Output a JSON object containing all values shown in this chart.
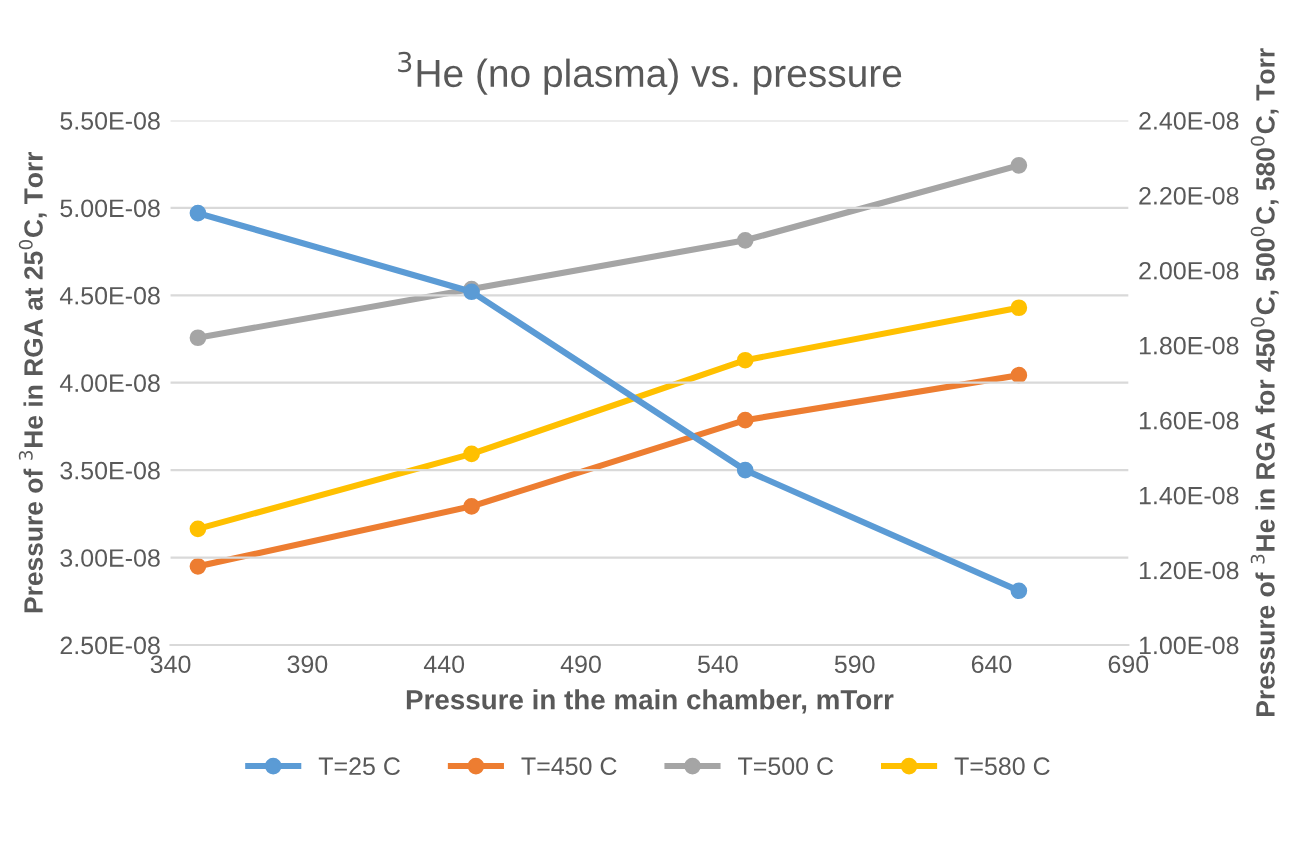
{
  "chart_data": {
    "type": "line",
    "title": "$^{3}$He (no plasma) vs. pressure",
    "xlabel": "Pressure in the main chamber, mTorr",
    "ylabel": "Pressure of $^{3}$He in RGA at 25$^{0}$C, Torr",
    "y2label": "Pressure of $^{3}$He in RGA for 450$^{0}$C, 500$^{0}$C, 580$^{0}$C, Torr",
    "x": [
      350,
      450,
      550,
      650
    ],
    "series": [
      {
        "name": "T=25 C",
        "color": "#5b9bd5",
        "values": [
          4.97e-08,
          4.52e-08,
          3.5e-08,
          2.81e-08
        ]
      },
      {
        "name": "T=450 C",
        "color": "#ed7d31",
        "axis": "y2",
        "values": [
          1.21e-08,
          1.37e-08,
          1.6e-08,
          1.72e-08
        ]
      },
      {
        "name": "T=500 C",
        "color": "#a5a5a5",
        "axis": "y2",
        "values": [
          1.82e-08,
          1.95e-08,
          2.08e-08,
          2.28e-08
        ]
      },
      {
        "name": "T=580 C",
        "color": "#ffc000",
        "axis": "y2",
        "values": [
          1.31e-08,
          1.51e-08,
          1.76e-08,
          1.9e-08
        ]
      }
    ],
    "xlim": [
      340,
      690
    ],
    "xticks": [
      340,
      390,
      440,
      490,
      540,
      590,
      640,
      690
    ],
    "ylim": [
      2.5e-08,
      5.5e-08
    ],
    "yticks": [
      {
        "value": 2.5e-08,
        "label": "2.50E-08"
      },
      {
        "value": 3e-08,
        "label": "3.00E-08"
      },
      {
        "value": 3.5e-08,
        "label": "3.50E-08"
      },
      {
        "value": 4e-08,
        "label": "4.00E-08"
      },
      {
        "value": 4.5e-08,
        "label": "4.50E-08"
      },
      {
        "value": 5e-08,
        "label": "5.00E-08"
      },
      {
        "value": 5.5e-08,
        "label": "5.50E-08"
      }
    ],
    "y2lim": [
      1e-08,
      2.4e-08
    ],
    "y2ticks": [
      {
        "value": 1e-08,
        "label": "1.00E-08"
      },
      {
        "value": 1.2e-08,
        "label": "1.20E-08"
      },
      {
        "value": 1.4e-08,
        "label": "1.40E-08"
      },
      {
        "value": 1.6e-08,
        "label": "1.60E-08"
      },
      {
        "value": 1.8e-08,
        "label": "1.80E-08"
      },
      {
        "value": 2e-08,
        "label": "2.00E-08"
      },
      {
        "value": 2.2e-08,
        "label": "2.20E-08"
      },
      {
        "value": 2.4e-08,
        "label": "2.40E-08"
      }
    ],
    "grid": "y",
    "legend": "bottom",
    "marker": "circle",
    "line_style": "solid"
  }
}
